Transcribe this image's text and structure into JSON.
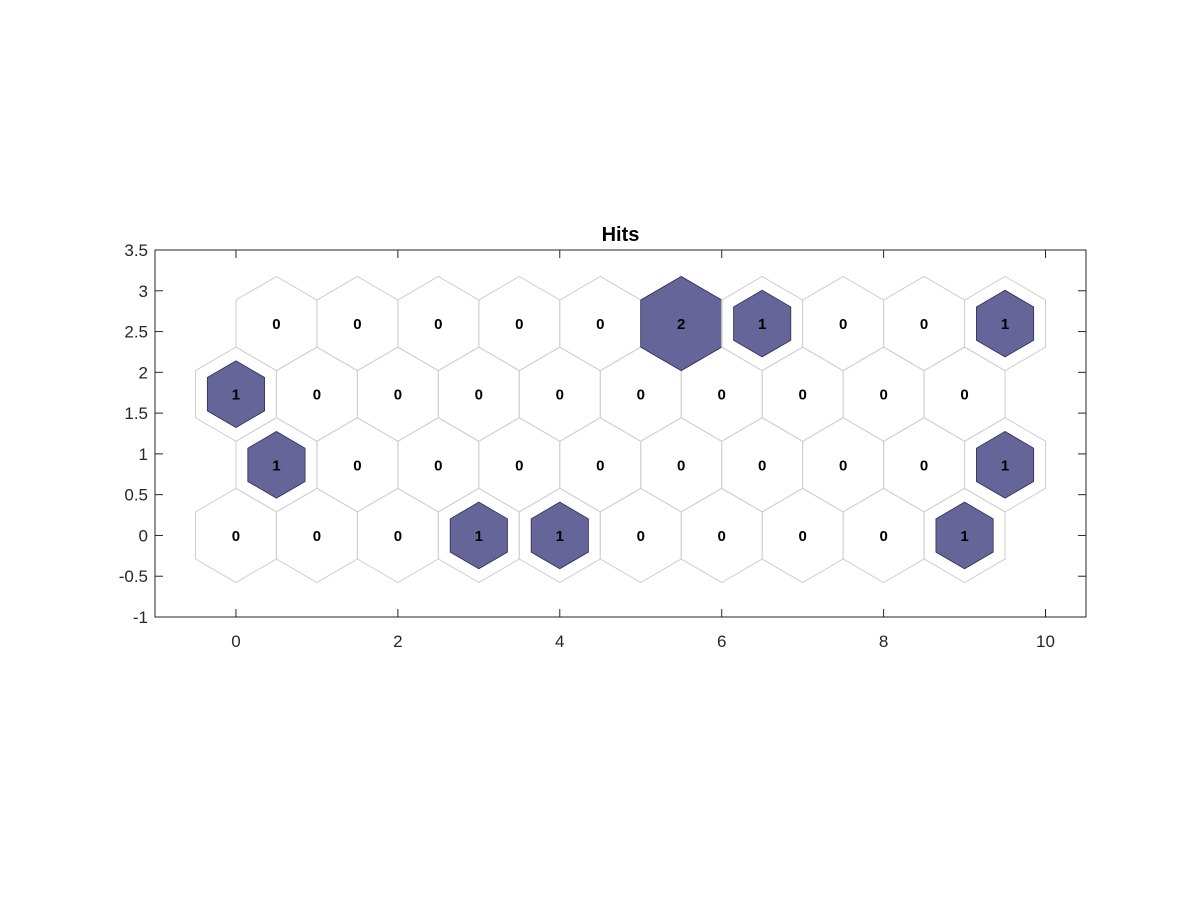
{
  "chart_data": {
    "type": "heatmap",
    "title": "Hits",
    "xlabel": "",
    "ylabel": "",
    "xlim": [
      -1,
      10.5
    ],
    "ylim": [
      -1,
      3.5
    ],
    "xticks": [
      0,
      2,
      4,
      6,
      8,
      10
    ],
    "xtick_labels": [
      "0",
      "2",
      "4",
      "6",
      "8",
      "10"
    ],
    "yticks": [
      -1,
      -0.5,
      0,
      0.5,
      1,
      1.5,
      2,
      2.5,
      3,
      3.5
    ],
    "ytick_labels": [
      "-1",
      "-0.5",
      "0",
      "0.5",
      "1",
      "1.5",
      "2",
      "2.5",
      "3",
      "3.5"
    ],
    "grid": false,
    "max_hits": 2,
    "colors": {
      "filled": "#65659A",
      "outline": "#CFCFCF",
      "axis": "#262626"
    },
    "cells": [
      {
        "x": 0,
        "y": 0,
        "hits": 0
      },
      {
        "x": 1,
        "y": 0,
        "hits": 0
      },
      {
        "x": 2,
        "y": 0,
        "hits": 0
      },
      {
        "x": 3,
        "y": 0,
        "hits": 1
      },
      {
        "x": 4,
        "y": 0,
        "hits": 1
      },
      {
        "x": 5,
        "y": 0,
        "hits": 0
      },
      {
        "x": 6,
        "y": 0,
        "hits": 0
      },
      {
        "x": 7,
        "y": 0,
        "hits": 0
      },
      {
        "x": 8,
        "y": 0,
        "hits": 0
      },
      {
        "x": 9,
        "y": 0,
        "hits": 1
      },
      {
        "x": 0.5,
        "y": 0.866,
        "hits": 1
      },
      {
        "x": 1.5,
        "y": 0.866,
        "hits": 0
      },
      {
        "x": 2.5,
        "y": 0.866,
        "hits": 0
      },
      {
        "x": 3.5,
        "y": 0.866,
        "hits": 0
      },
      {
        "x": 4.5,
        "y": 0.866,
        "hits": 0
      },
      {
        "x": 5.5,
        "y": 0.866,
        "hits": 0
      },
      {
        "x": 6.5,
        "y": 0.866,
        "hits": 0
      },
      {
        "x": 7.5,
        "y": 0.866,
        "hits": 0
      },
      {
        "x": 8.5,
        "y": 0.866,
        "hits": 0
      },
      {
        "x": 9.5,
        "y": 0.866,
        "hits": 1
      },
      {
        "x": 0,
        "y": 1.732,
        "hits": 1
      },
      {
        "x": 1,
        "y": 1.732,
        "hits": 0
      },
      {
        "x": 2,
        "y": 1.732,
        "hits": 0
      },
      {
        "x": 3,
        "y": 1.732,
        "hits": 0
      },
      {
        "x": 4,
        "y": 1.732,
        "hits": 0
      },
      {
        "x": 5,
        "y": 1.732,
        "hits": 0
      },
      {
        "x": 6,
        "y": 1.732,
        "hits": 0
      },
      {
        "x": 7,
        "y": 1.732,
        "hits": 0
      },
      {
        "x": 8,
        "y": 1.732,
        "hits": 0
      },
      {
        "x": 9,
        "y": 1.732,
        "hits": 0
      },
      {
        "x": 0.5,
        "y": 2.598,
        "hits": 0
      },
      {
        "x": 1.5,
        "y": 2.598,
        "hits": 0
      },
      {
        "x": 2.5,
        "y": 2.598,
        "hits": 0
      },
      {
        "x": 3.5,
        "y": 2.598,
        "hits": 0
      },
      {
        "x": 4.5,
        "y": 2.598,
        "hits": 0
      },
      {
        "x": 5.5,
        "y": 2.598,
        "hits": 2
      },
      {
        "x": 6.5,
        "y": 2.598,
        "hits": 1
      },
      {
        "x": 7.5,
        "y": 2.598,
        "hits": 0
      },
      {
        "x": 8.5,
        "y": 2.598,
        "hits": 0
      },
      {
        "x": 9.5,
        "y": 2.598,
        "hits": 1
      }
    ]
  }
}
